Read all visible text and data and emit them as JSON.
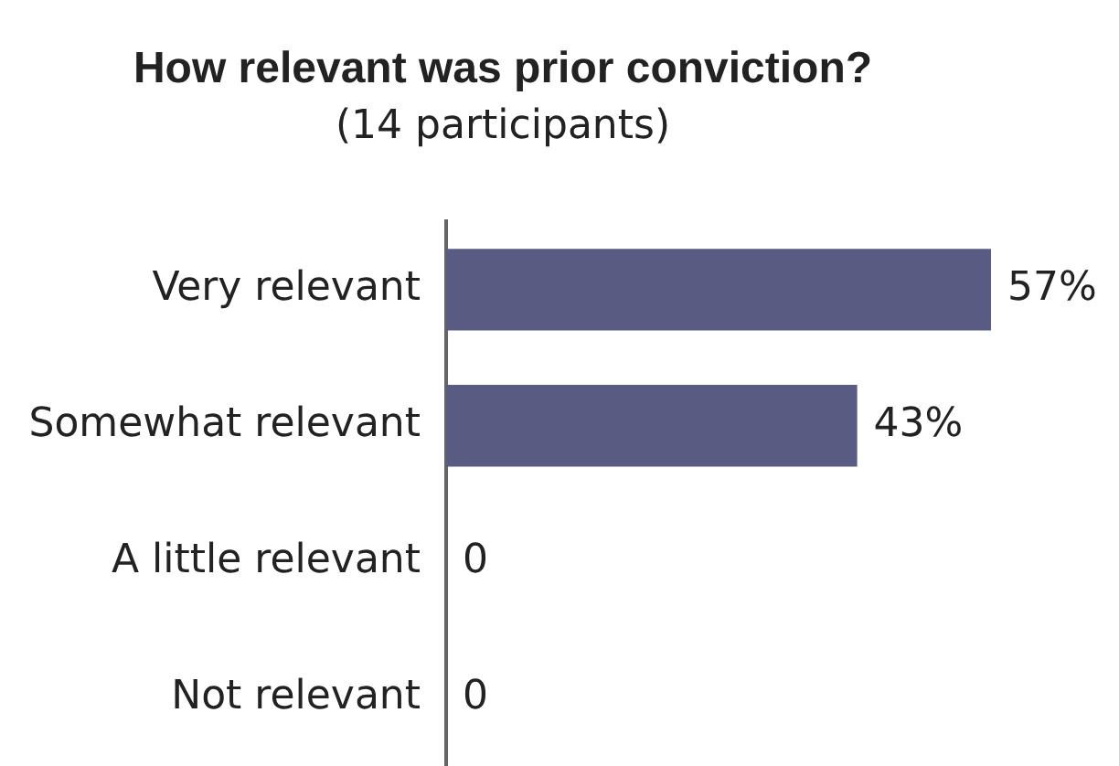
{
  "chart_data": {
    "type": "bar",
    "title": "How relevant was prior conviction?",
    "subtitle": "(14 participants)",
    "orientation": "horizontal",
    "categories": [
      "Very relevant",
      "Somewhat relevant",
      "A little relevant",
      "Not relevant"
    ],
    "values": [
      57,
      43,
      0,
      0
    ],
    "color": "#595b82",
    "value_labels": [
      "57%",
      "43%",
      "0",
      "0"
    ],
    "tick_labels": "y",
    "grid": false,
    "legend": false
  }
}
